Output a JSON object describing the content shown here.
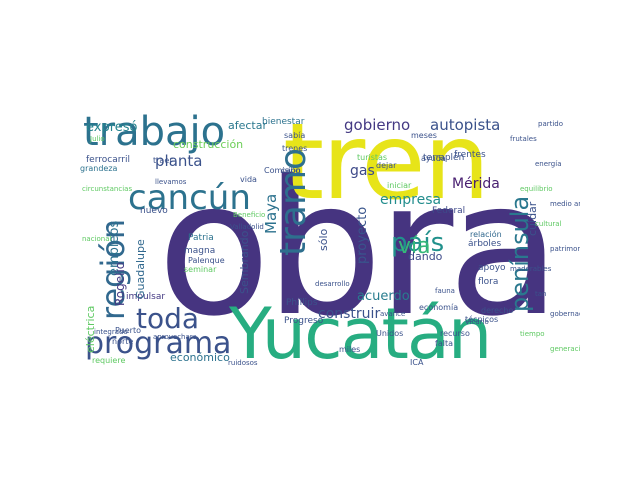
{
  "words": [
    {
      "text": "obra",
      "color": "#463480"
    },
    {
      "text": "tren",
      "color": "#e7e419"
    },
    {
      "text": "Yucatán",
      "color": "#27ad81"
    },
    {
      "text": "trabajo",
      "color": "#2c728e"
    },
    {
      "text": "cancún",
      "color": "#2c728e"
    },
    {
      "text": "programa",
      "color": "#3b528b"
    },
    {
      "text": "toda",
      "color": "#3b528b"
    },
    {
      "text": "región",
      "color": "#31688e"
    },
    {
      "text": "tramo",
      "color": "#2e6f8e"
    },
    {
      "text": "península",
      "color": "#2a788e"
    },
    {
      "text": "país",
      "color": "#21918c"
    },
    {
      "text": "vía",
      "color": "#35b779"
    },
    {
      "text": "planta",
      "color": "#3b528b"
    },
    {
      "text": "gobierno",
      "color": "#443983"
    },
    {
      "text": "autopista",
      "color": "#3b528b"
    },
    {
      "text": "Maya",
      "color": "#2c728e"
    },
    {
      "text": "gas",
      "color": "#3e4a89"
    },
    {
      "text": "Mérida",
      "color": "#481f70"
    },
    {
      "text": "empresa",
      "color": "#228d8d"
    },
    {
      "text": "empleos",
      "color": "#2c728e"
    },
    {
      "text": "Rogelio",
      "color": "#443a83"
    },
    {
      "text": "proyecto",
      "color": "#39558c"
    },
    {
      "text": "construir",
      "color": "#3b528b"
    },
    {
      "text": "acuerdo",
      "color": "#287c8e"
    },
    {
      "text": "Sembrando",
      "color": "#3b528b"
    },
    {
      "text": "construcción",
      "color": "#6ece58"
    },
    {
      "text": "expresó",
      "color": "#25848e"
    },
    {
      "text": "afectar",
      "color": "#2a788e"
    },
    {
      "text": "cuidar",
      "color": "#3b528b"
    },
    {
      "text": "Guadalupe",
      "color": "#31688e"
    },
    {
      "text": "eléctrica",
      "color": "#5ec962"
    },
    {
      "text": "económico",
      "color": "#2c728e"
    },
    {
      "text": "dando",
      "color": "#3e4a89"
    },
    {
      "text": "sólo",
      "color": "#3b528b"
    },
    {
      "text": "bienestar",
      "color": "#2c728e"
    },
    {
      "text": "terraplén",
      "color": "#3b528b"
    },
    {
      "text": "Federal",
      "color": "#3e4a89"
    },
    {
      "text": "ferrocarril",
      "color": "#3b528b"
    },
    {
      "text": "grandeza",
      "color": "#2c728e"
    },
    {
      "text": "nuevo",
      "color": "#3b528b"
    },
    {
      "text": "Patria",
      "color": "#2c728e"
    },
    {
      "text": "magna",
      "color": "#3b528b"
    },
    {
      "text": "impulsar",
      "color": "#443983"
    },
    {
      "text": "flora",
      "color": "#3b528b"
    },
    {
      "text": "apoyo",
      "color": "#3b528b"
    },
    {
      "text": "relación",
      "color": "#31688e"
    },
    {
      "text": "árboles",
      "color": "#3b528b"
    },
    {
      "text": "Phillips",
      "color": "#3b528b"
    },
    {
      "text": "Progreso",
      "color": "#3b528b"
    },
    {
      "text": "frutales",
      "color": "#3b528b"
    },
    {
      "text": "energía",
      "color": "#3b528b"
    },
    {
      "text": "Unidos",
      "color": "#3b528b"
    },
    {
      "text": "miles",
      "color": "#3b528b"
    },
    {
      "text": "recurso",
      "color": "#3b528b"
    },
    {
      "text": "falta",
      "color": "#3b528b"
    },
    {
      "text": "economía",
      "color": "#3b528b"
    },
    {
      "text": "derecho",
      "color": "#3b528b"
    },
    {
      "text": "técnicos",
      "color": "#3b528b"
    },
    {
      "text": "equilibrio",
      "color": "#5ec962"
    },
    {
      "text": "medio ambiente",
      "color": "#3b528b"
    },
    {
      "text": "cultural",
      "color": "#5ec962"
    },
    {
      "text": "patrimonio",
      "color": "#3b528b"
    },
    {
      "text": "maderables",
      "color": "#3b528b"
    },
    {
      "text": "frentes",
      "color": "#3b528b"
    },
    {
      "text": "ayuda",
      "color": "#3b528b"
    },
    {
      "text": "turistas",
      "color": "#5ec962"
    },
    {
      "text": "iniciar",
      "color": "#5ec962"
    },
    {
      "text": "Comisión",
      "color": "#3b528b"
    },
    {
      "text": "trenes",
      "color": "#3b528b"
    },
    {
      "text": "vida",
      "color": "#3b528b"
    },
    {
      "text": "tan",
      "color": "#3b528b"
    },
    {
      "text": "traer",
      "color": "#3b528b"
    },
    {
      "text": "requiere",
      "color": "#5ec962"
    },
    {
      "text": "norte",
      "color": "#3b528b"
    },
    {
      "text": "Puerto",
      "color": "#3b528b"
    },
    {
      "text": "gobernador",
      "color": "#3b528b"
    },
    {
      "text": "Palenque",
      "color": "#3b528b"
    },
    {
      "text": "seminar",
      "color": "#5ec962"
    },
    {
      "text": "tiempo",
      "color": "#5ec962"
    },
    {
      "text": "generación",
      "color": "#5ec962"
    },
    {
      "text": "Valladolid",
      "color": "#3b528b"
    },
    {
      "text": "desarrollo",
      "color": "#3b528b"
    },
    {
      "text": "avance",
      "color": "#3b528b"
    },
    {
      "text": "fauna",
      "color": "#3b528b"
    },
    {
      "text": "Julio",
      "color": "#5ec962"
    },
    {
      "text": "cabo",
      "color": "#3b528b"
    },
    {
      "text": "sabía",
      "color": "#3b528b"
    },
    {
      "text": "meses",
      "color": "#3b528b"
    },
    {
      "text": "ICA",
      "color": "#3b528b"
    },
    {
      "text": "circunstancias",
      "color": "#5ec962"
    },
    {
      "text": "partido",
      "color": "#3b528b"
    },
    {
      "text": "Vicario",
      "color": "#3b528b"
    },
    {
      "text": "Beneficio",
      "color": "#5ec962"
    },
    {
      "text": "integrado",
      "color": "#3b528b"
    },
    {
      "text": "aprovechara",
      "color": "#3b528b"
    },
    {
      "text": "ruidosos",
      "color": "#3b528b"
    },
    {
      "text": "nacional",
      "color": "#5ec962"
    },
    {
      "text": "dejar",
      "color": "#3b528b"
    },
    {
      "text": "llevamos",
      "color": "#3b528b"
    }
  ]
}
